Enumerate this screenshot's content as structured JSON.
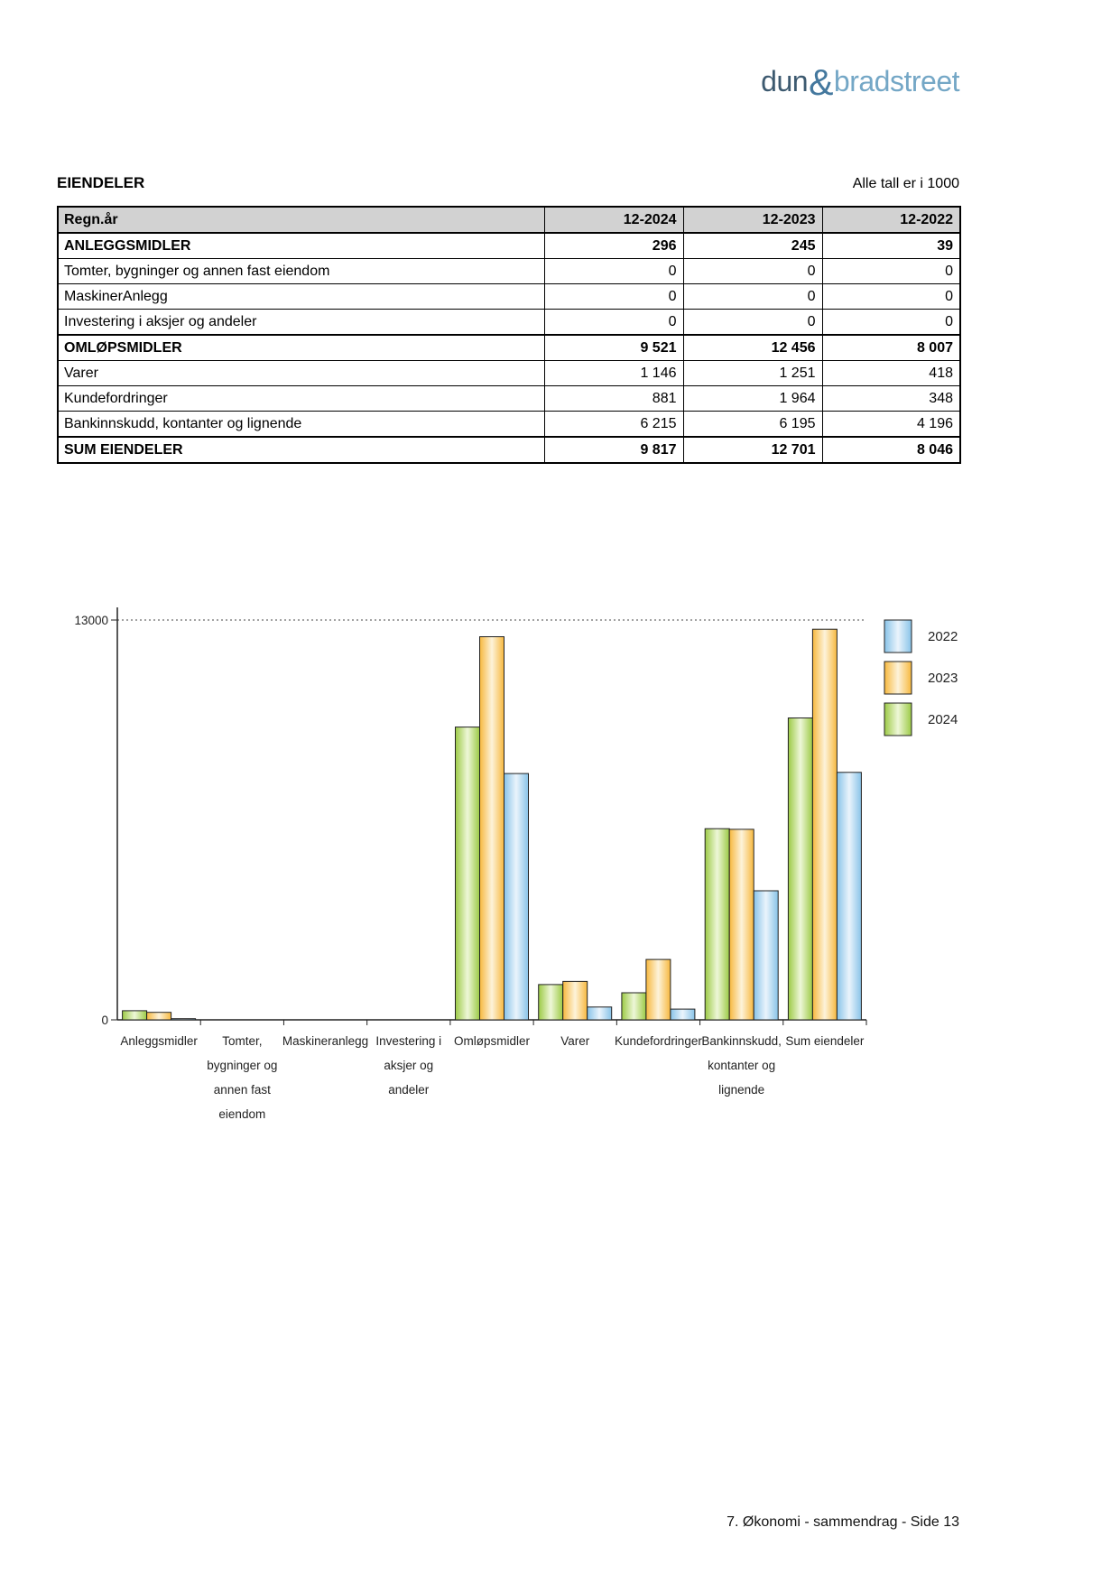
{
  "page": {
    "logo": {
      "part1": "dun",
      "ampersand": "&",
      "part2": "bradstreet"
    },
    "title": "EIENDELER",
    "units_note": "Alle tall er i 1000",
    "footer": "7. Økonomi - sammendrag - Side 13"
  },
  "table": {
    "header": [
      "Regn.år",
      "12-2024",
      "12-2023",
      "12-2022"
    ],
    "rows": [
      {
        "label": "ANLEGGSMIDLER",
        "bold": true,
        "values": [
          "296",
          "245",
          "39"
        ]
      },
      {
        "label": "Tomter, bygninger og annen fast eiendom",
        "bold": false,
        "values": [
          "0",
          "0",
          "0"
        ]
      },
      {
        "label": "MaskinerAnlegg",
        "bold": false,
        "values": [
          "0",
          "0",
          "0"
        ]
      },
      {
        "label": "Investering i aksjer og andeler",
        "bold": false,
        "values": [
          "0",
          "0",
          "0"
        ]
      },
      {
        "label": "OMLØPSMIDLER",
        "bold": true,
        "values": [
          "9 521",
          "12 456",
          "8 007"
        ]
      },
      {
        "label": "Varer",
        "bold": false,
        "values": [
          "1 146",
          "1 251",
          "418"
        ]
      },
      {
        "label": "Kundefordringer",
        "bold": false,
        "values": [
          "881",
          "1 964",
          "348"
        ]
      },
      {
        "label": "Bankinnskudd, kontanter og lignende",
        "bold": false,
        "values": [
          "6 215",
          "6 195",
          "4 196"
        ]
      },
      {
        "label": "SUM EIENDELER",
        "bold": true,
        "values": [
          "9 817",
          "12 701",
          "8 046"
        ]
      }
    ]
  },
  "chart_data": {
    "type": "bar",
    "title": "",
    "ylim": [
      0,
      13000
    ],
    "yticks": [
      {
        "value": 13000,
        "label": "13000"
      },
      {
        "value": 0,
        "label": "0"
      }
    ],
    "grid": "dotted-line-at-ymax",
    "legend_position": "top-right",
    "legend": [
      "2022",
      "2023",
      "2024"
    ],
    "categories": [
      [
        "Anleggsmidler"
      ],
      [
        "Tomter,",
        "bygninger og",
        "annen fast",
        "eiendom"
      ],
      [
        "Maskineranlegg"
      ],
      [
        "Investering i",
        "aksjer og",
        "andeler"
      ],
      [
        "Omløpsmidler"
      ],
      [
        "Varer"
      ],
      [
        "Kundefordringer"
      ],
      [
        "Bankinnskudd,",
        "kontanter og",
        "lignende"
      ],
      [
        "Sum eiendeler"
      ]
    ],
    "series": [
      {
        "name": "2024",
        "values": [
          296,
          0,
          0,
          0,
          9521,
          1146,
          881,
          6215,
          9817
        ]
      },
      {
        "name": "2023",
        "values": [
          245,
          0,
          0,
          0,
          12456,
          1251,
          1964,
          6195,
          12701
        ]
      },
      {
        "name": "2022",
        "values": [
          39,
          0,
          0,
          0,
          8007,
          418,
          348,
          4196,
          8046
        ]
      }
    ],
    "colors": {
      "2024": {
        "edge": "#9cca45",
        "center": "#eef7d8"
      },
      "2023": {
        "edge": "#f7b83e",
        "center": "#fdf3da"
      },
      "2022": {
        "edge": "#88c3e8",
        "center": "#eaf4fc"
      }
    }
  }
}
